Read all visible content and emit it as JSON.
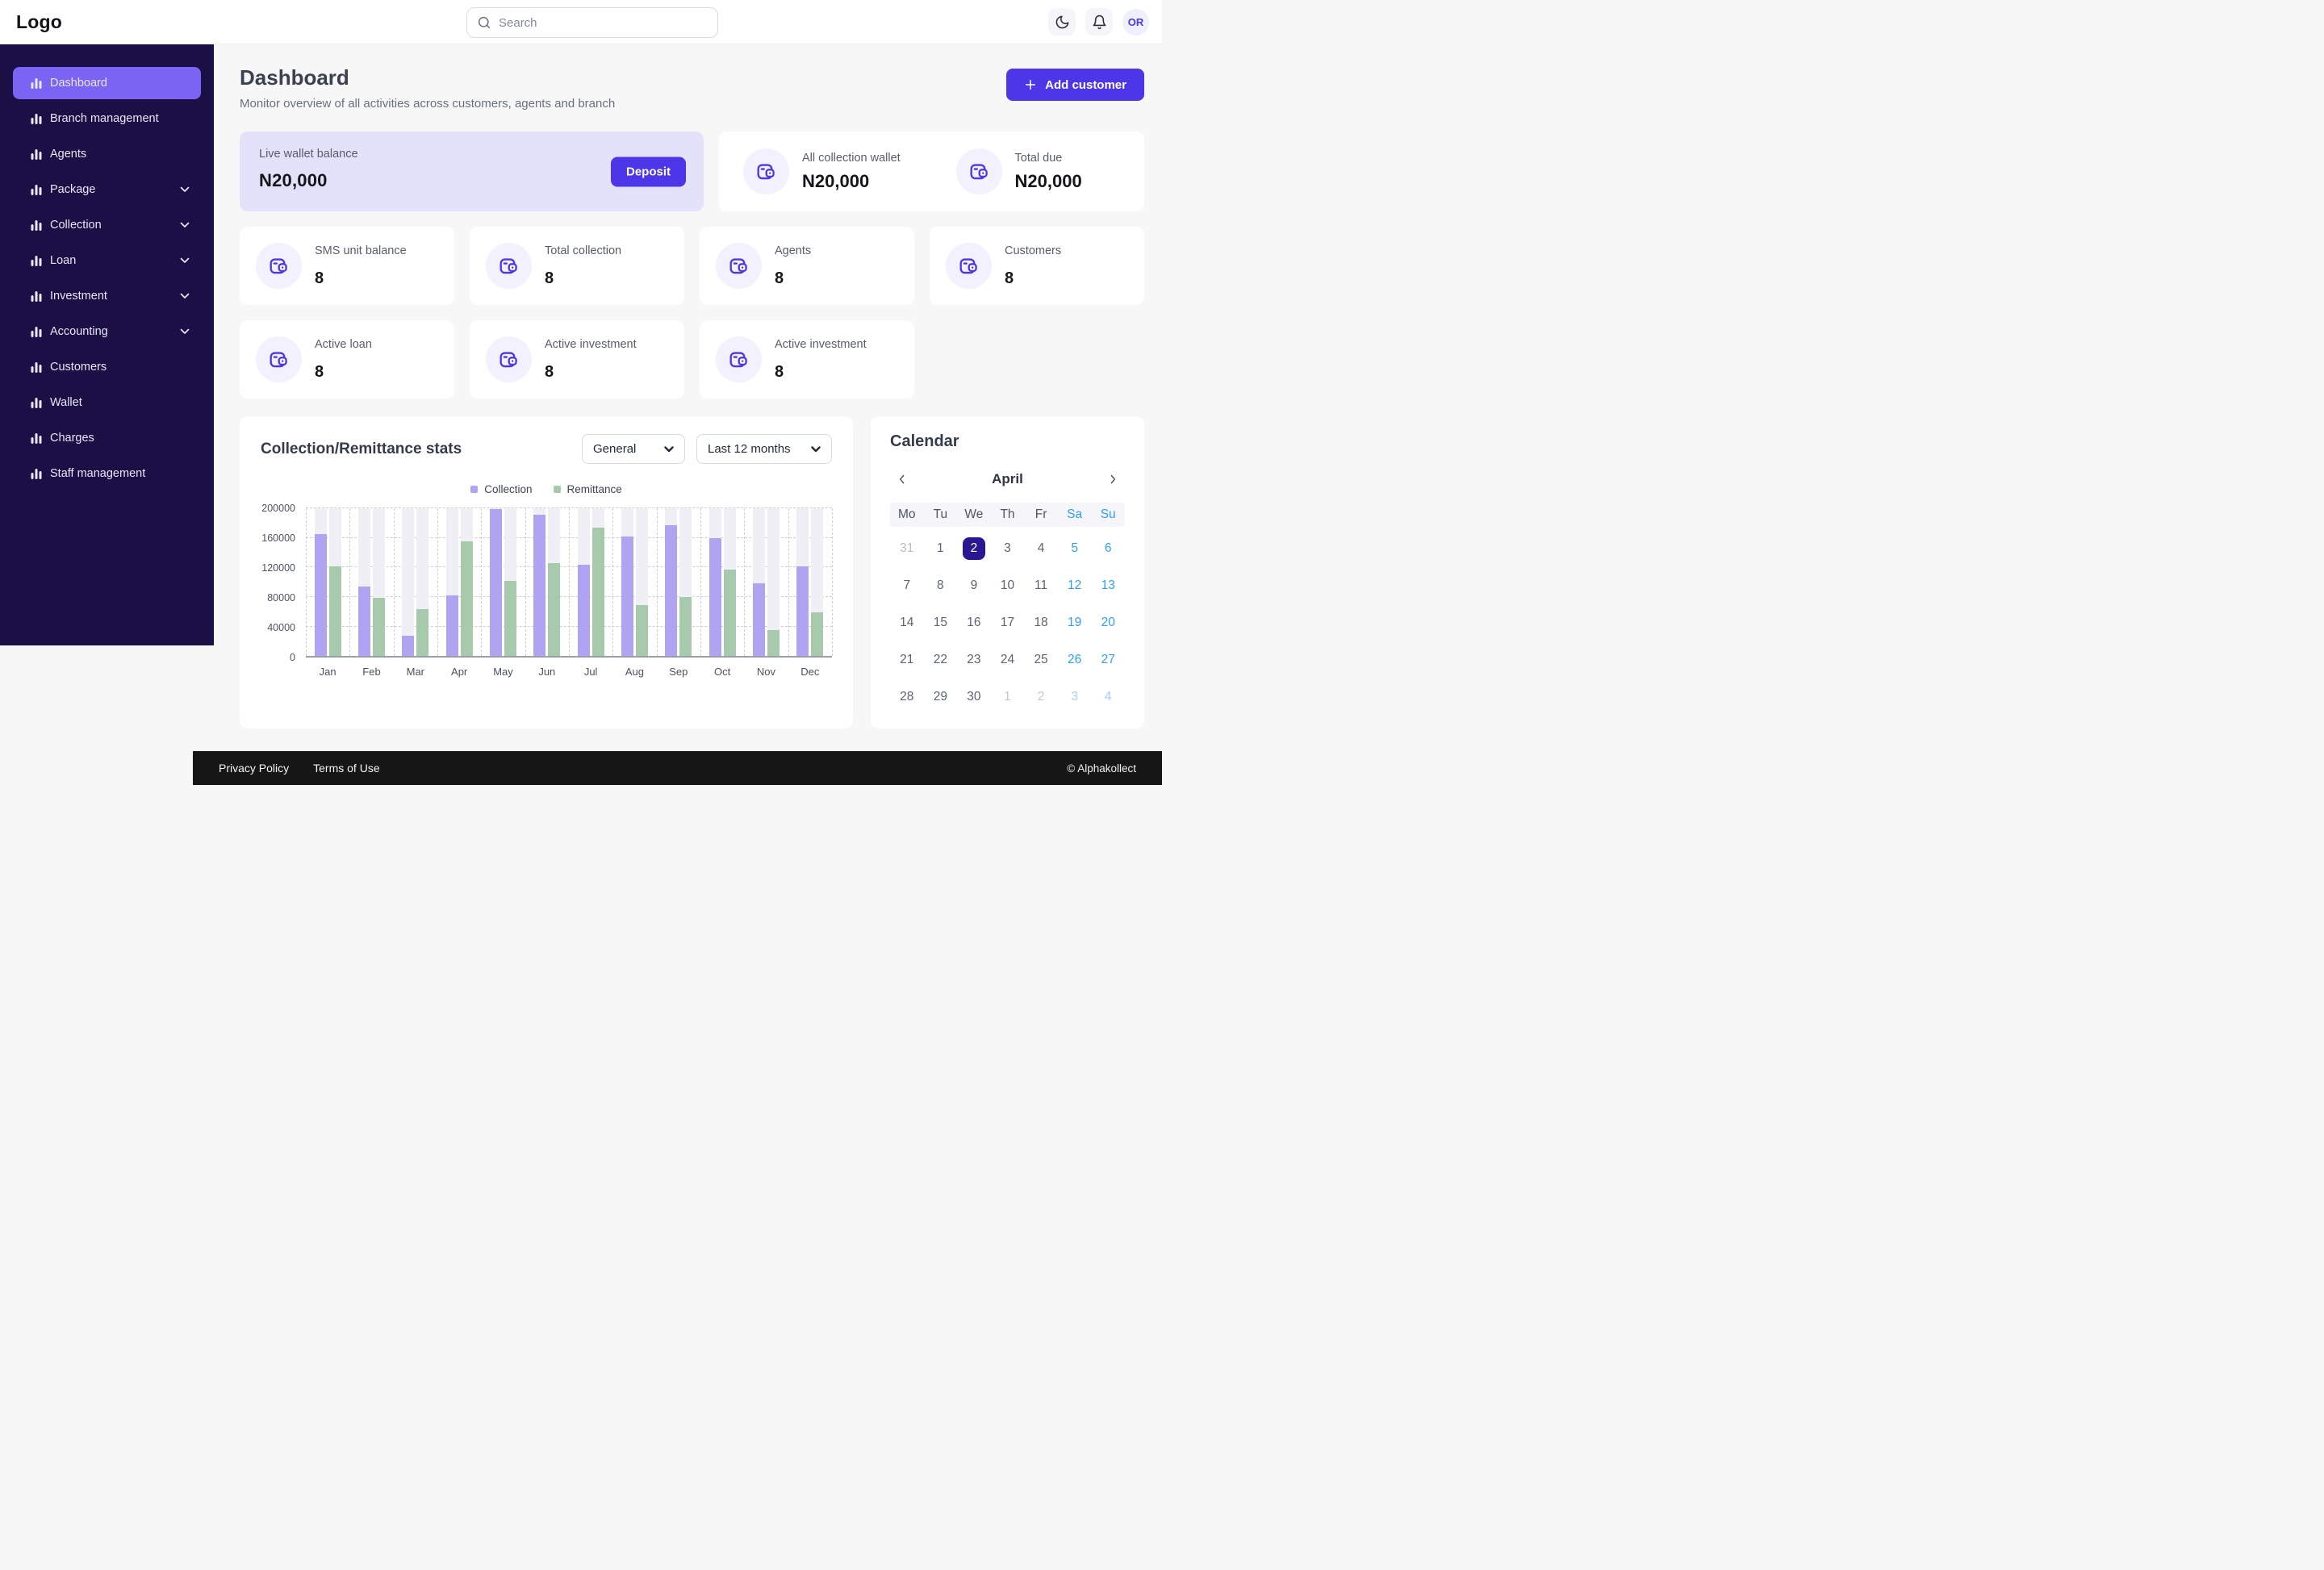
{
  "colors": {
    "accent": "#4d35e8",
    "sidebar_bg": "#1b1045",
    "sidebar_active": "#7b64f3",
    "collection_bar": "#afa3f2",
    "remittance_bar": "#a6caab",
    "weekend_blue": "#2da0f5",
    "selected_day_bg": "#2b1694",
    "live_card_bg": "#e4e1fa"
  },
  "header": {
    "logo": "Logo",
    "search_placeholder": "Search",
    "avatar": "OR"
  },
  "sidebar": {
    "items": [
      {
        "label": "Dashboard",
        "active": true,
        "expandable": false
      },
      {
        "label": "Branch management",
        "active": false,
        "expandable": false
      },
      {
        "label": "Agents",
        "active": false,
        "expandable": false
      },
      {
        "label": "Package",
        "active": false,
        "expandable": true
      },
      {
        "label": "Collection",
        "active": false,
        "expandable": true
      },
      {
        "label": "Loan",
        "active": false,
        "expandable": true
      },
      {
        "label": "Investment",
        "active": false,
        "expandable": true
      },
      {
        "label": "Accounting",
        "active": false,
        "expandable": true
      },
      {
        "label": "Customers",
        "active": false,
        "expandable": false
      },
      {
        "label": "Wallet",
        "active": false,
        "expandable": false
      },
      {
        "label": "Charges",
        "active": false,
        "expandable": false
      },
      {
        "label": "Staff management",
        "active": false,
        "expandable": false
      }
    ]
  },
  "page": {
    "title": "Dashboard",
    "subtitle": "Monitor overview of all activities across customers, agents and branch",
    "add_customer": "Add customer"
  },
  "wallet": {
    "live_label": "Live wallet balance",
    "live_value": "N20,000",
    "deposit": "Deposit",
    "summary": [
      {
        "label": "All collection wallet",
        "value": "N20,000"
      },
      {
        "label": "Total due",
        "value": "N20,000"
      }
    ]
  },
  "stats": [
    {
      "label": "SMS unit balance",
      "value": "8"
    },
    {
      "label": "Total collection",
      "value": "8"
    },
    {
      "label": "Agents",
      "value": "8"
    },
    {
      "label": "Customers",
      "value": "8"
    },
    {
      "label": "Active loan",
      "value": "8"
    },
    {
      "label": "Active investment",
      "value": "8"
    },
    {
      "label": "Active investment",
      "value": "8"
    }
  ],
  "chart_card": {
    "title": "Collection/Remittance stats",
    "filter_general": "General",
    "filter_period": "Last 12 months"
  },
  "chart_data": {
    "type": "bar",
    "title": "Collection/Remittance stats",
    "categories": [
      "Jan",
      "Feb",
      "Mar",
      "Apr",
      "May",
      "Jun",
      "Jul",
      "Aug",
      "Sep",
      "Oct",
      "Nov",
      "Dec"
    ],
    "series": [
      {
        "name": "Collection",
        "color": "#afa3f2",
        "values": [
          165000,
          94000,
          27000,
          82000,
          199000,
          192000,
          124000,
          162000,
          177000,
          160000,
          99000,
          121000
        ]
      },
      {
        "name": "Remittance",
        "color": "#a6caab",
        "values": [
          121000,
          79000,
          64000,
          155000,
          102000,
          126000,
          174000,
          69000,
          80000,
          117000,
          35000,
          59000
        ]
      }
    ],
    "ylim": [
      0,
      200000
    ],
    "yticks": [
      0,
      40000,
      80000,
      120000,
      160000,
      200000
    ],
    "grid": "dashed-horizontal-and-vertical",
    "legend_position": "top-center"
  },
  "calendar": {
    "title": "Calendar",
    "month": "April",
    "day_headers": [
      {
        "label": "Mo",
        "weekend": false
      },
      {
        "label": "Tu",
        "weekend": false
      },
      {
        "label": "We",
        "weekend": false
      },
      {
        "label": "Th",
        "weekend": false
      },
      {
        "label": "Fr",
        "weekend": false
      },
      {
        "label": "Sa",
        "weekend": true
      },
      {
        "label": "Su",
        "weekend": true
      }
    ],
    "cells": [
      {
        "d": "31",
        "t": "prev"
      },
      {
        "d": "1",
        "t": "day"
      },
      {
        "d": "2",
        "t": "selected"
      },
      {
        "d": "3",
        "t": "day"
      },
      {
        "d": "4",
        "t": "day"
      },
      {
        "d": "5",
        "t": "weekend"
      },
      {
        "d": "6",
        "t": "weekend"
      },
      {
        "d": "7",
        "t": "day"
      },
      {
        "d": "8",
        "t": "day"
      },
      {
        "d": "9",
        "t": "day"
      },
      {
        "d": "10",
        "t": "day"
      },
      {
        "d": "11",
        "t": "day"
      },
      {
        "d": "12",
        "t": "weekend"
      },
      {
        "d": "13",
        "t": "weekend"
      },
      {
        "d": "14",
        "t": "day"
      },
      {
        "d": "15",
        "t": "day"
      },
      {
        "d": "16",
        "t": "day"
      },
      {
        "d": "17",
        "t": "day"
      },
      {
        "d": "18",
        "t": "day"
      },
      {
        "d": "19",
        "t": "weekend"
      },
      {
        "d": "20",
        "t": "weekend"
      },
      {
        "d": "21",
        "t": "day"
      },
      {
        "d": "22",
        "t": "day"
      },
      {
        "d": "23",
        "t": "day"
      },
      {
        "d": "24",
        "t": "day"
      },
      {
        "d": "25",
        "t": "day"
      },
      {
        "d": "26",
        "t": "weekend"
      },
      {
        "d": "27",
        "t": "weekend"
      },
      {
        "d": "28",
        "t": "day"
      },
      {
        "d": "29",
        "t": "day"
      },
      {
        "d": "30",
        "t": "day"
      },
      {
        "d": "1",
        "t": "next"
      },
      {
        "d": "2",
        "t": "next"
      },
      {
        "d": "3",
        "t": "next-weekend"
      },
      {
        "d": "4",
        "t": "next-weekend"
      }
    ]
  },
  "footer": {
    "links": [
      "Privacy Policy",
      "Terms of Use"
    ],
    "copyright": "© Alphakollect"
  }
}
